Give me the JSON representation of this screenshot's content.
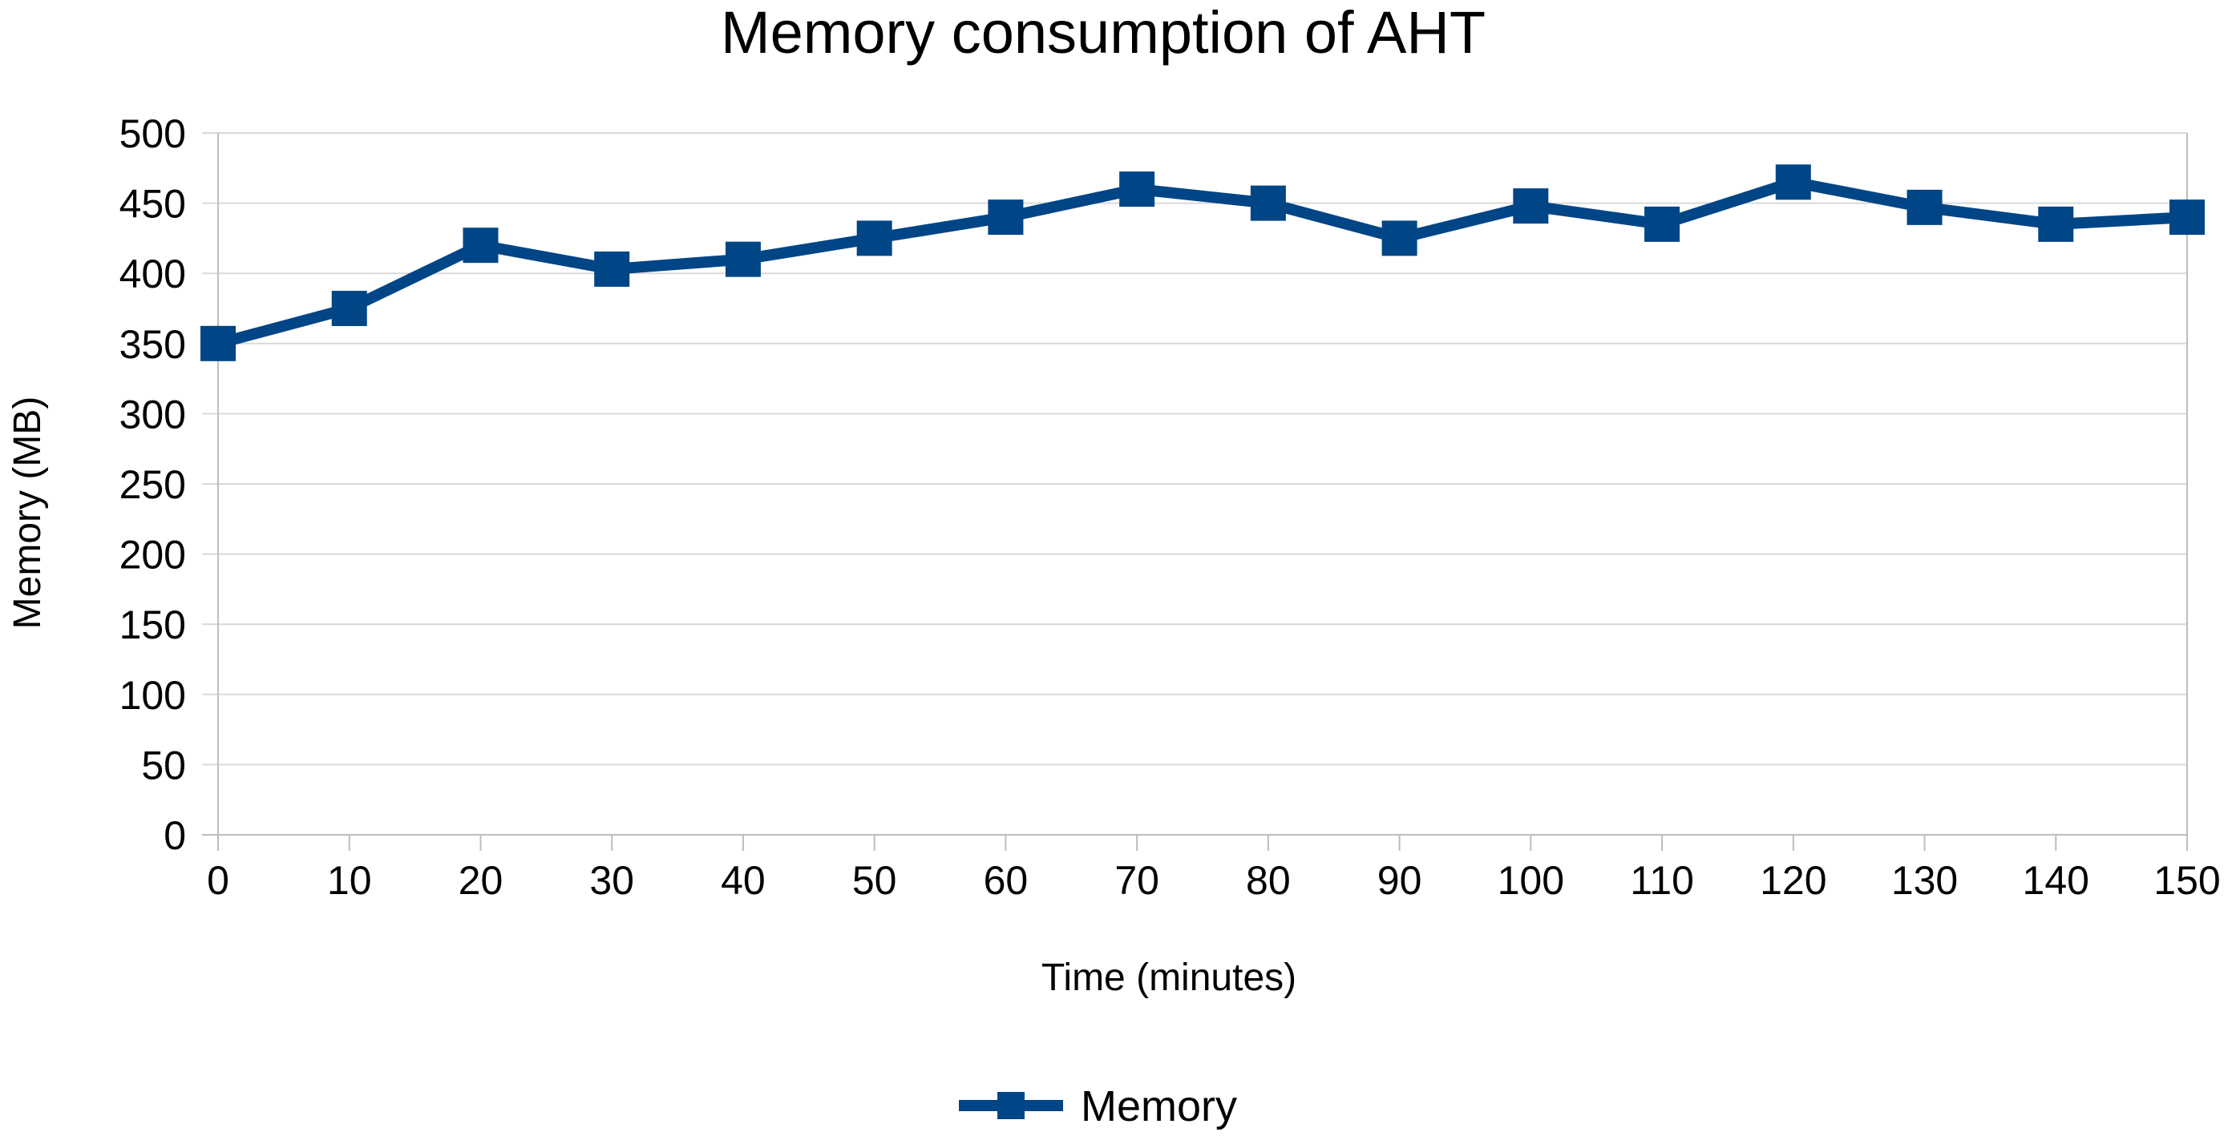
{
  "chart_data": {
    "type": "line",
    "title": "Memory consumption of AHT",
    "xlabel": "Time (minutes)",
    "ylabel": "Memory (MB)",
    "x": [
      0,
      10,
      20,
      30,
      40,
      50,
      60,
      70,
      80,
      90,
      100,
      110,
      120,
      130,
      140,
      150
    ],
    "xlim": [
      0,
      150
    ],
    "ylim": [
      0,
      500
    ],
    "yticks": [
      0,
      50,
      100,
      150,
      200,
      250,
      300,
      350,
      400,
      450,
      500
    ],
    "grid": true,
    "legend_position": "bottom",
    "series": [
      {
        "name": "Memory",
        "color": "#004586",
        "marker": "square",
        "values": [
          350,
          375,
          420,
          403,
          410,
          425,
          440,
          460,
          450,
          425,
          448,
          435,
          465,
          447,
          435,
          440
        ]
      }
    ]
  }
}
